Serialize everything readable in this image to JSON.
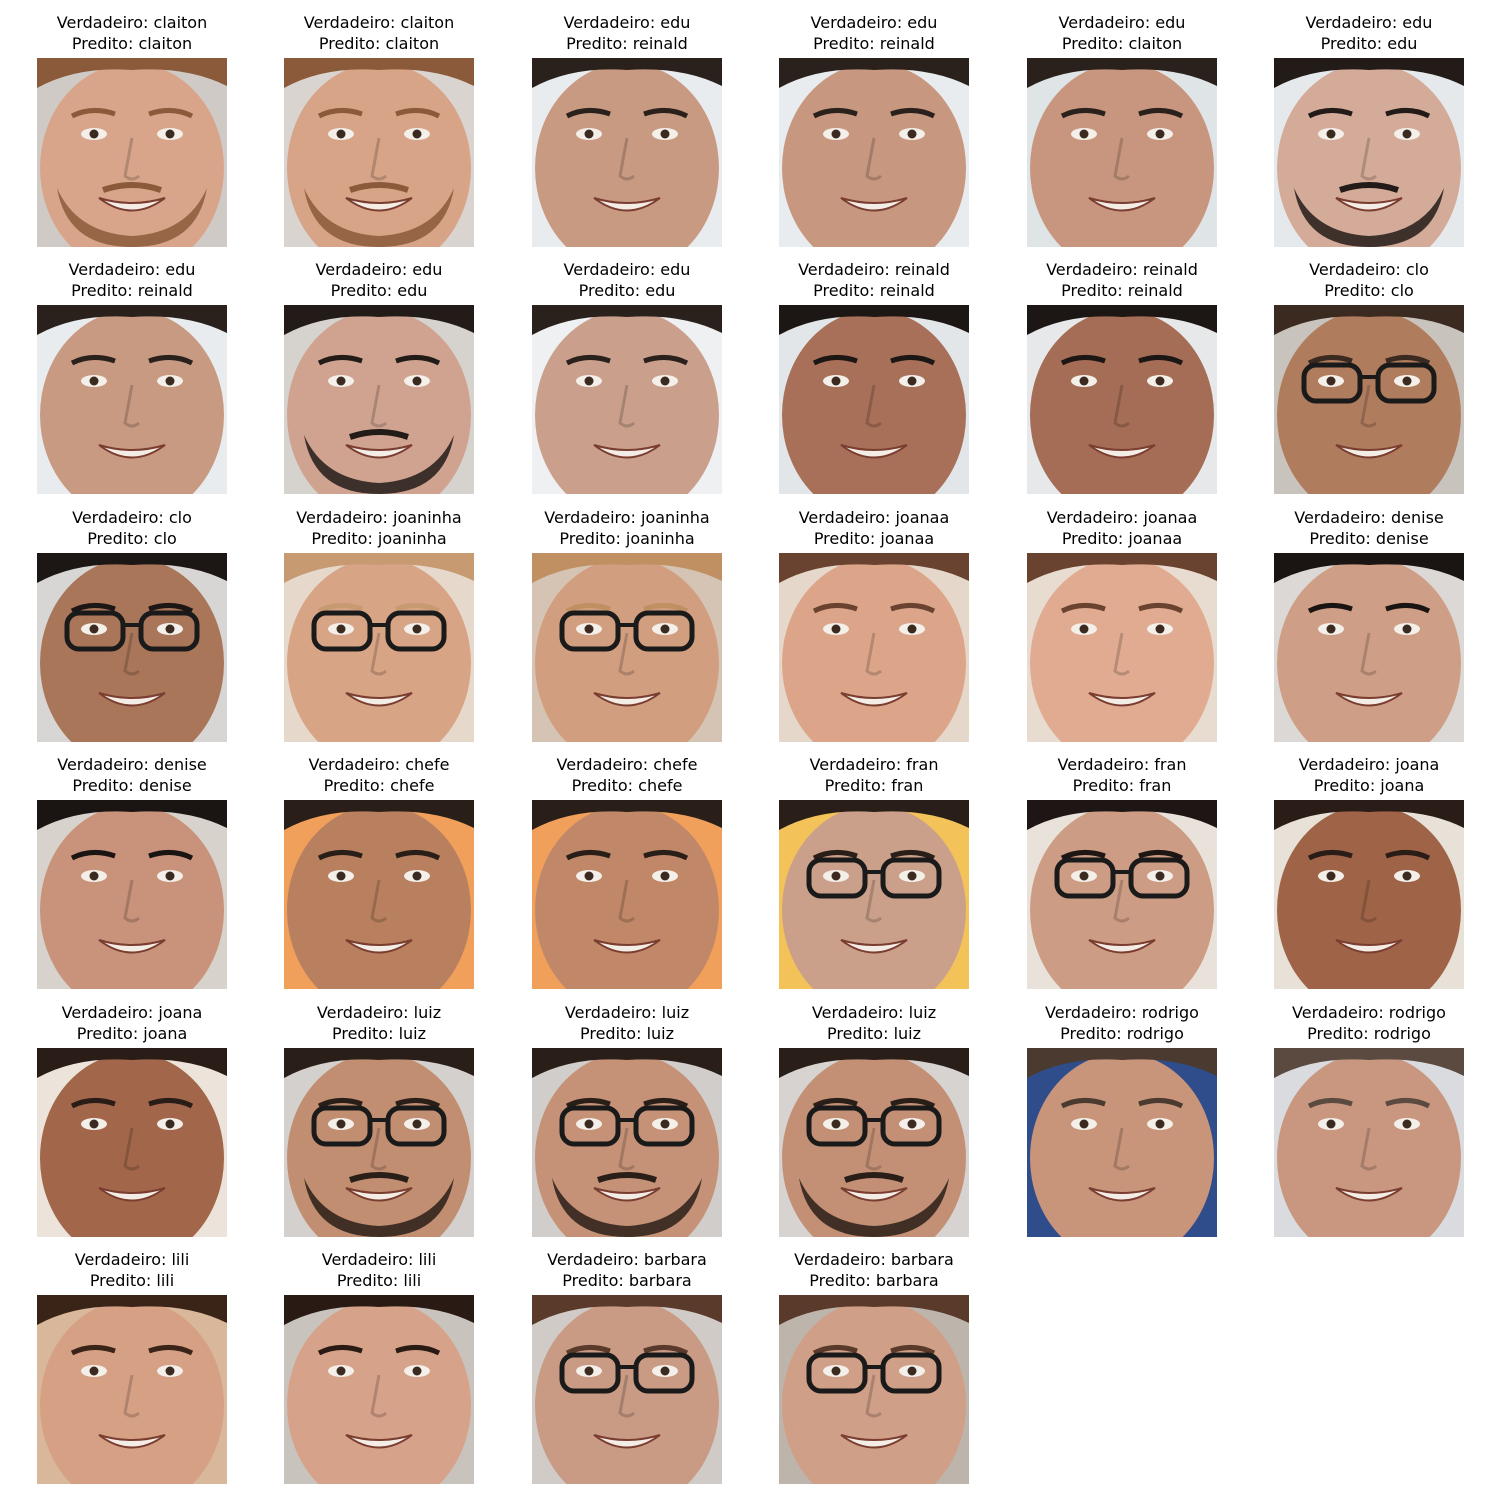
{
  "true_prefix": "Verdadeiro: ",
  "pred_prefix": "Predito: ",
  "items": [
    {
      "true": "claiton",
      "pred": "claiton",
      "skin": "#d9a58a",
      "hair": "#8a5a3a",
      "bg": "#cfcac6",
      "glasses": false,
      "beard": true
    },
    {
      "true": "claiton",
      "pred": "claiton",
      "skin": "#d7a488",
      "hair": "#8a5a3a",
      "bg": "#d9d4cf",
      "glasses": false,
      "beard": true
    },
    {
      "true": "edu",
      "pred": "reinald",
      "skin": "#c99a82",
      "hair": "#2a211c",
      "bg": "#e9ecef",
      "glasses": false,
      "beard": false
    },
    {
      "true": "edu",
      "pred": "reinald",
      "skin": "#c79780",
      "hair": "#2a211c",
      "bg": "#e9ecef",
      "glasses": false,
      "beard": false
    },
    {
      "true": "edu",
      "pred": "claiton",
      "skin": "#c8967e",
      "hair": "#2a211c",
      "bg": "#dfe4e7",
      "glasses": false,
      "beard": false
    },
    {
      "true": "edu",
      "pred": "edu",
      "skin": "#d3ab98",
      "hair": "#231b17",
      "bg": "#e6e9ec",
      "glasses": false,
      "beard": true
    },
    {
      "true": "edu",
      "pred": "reinald",
      "skin": "#c99a82",
      "hair": "#2a211c",
      "bg": "#e9ecef",
      "glasses": false,
      "beard": false
    },
    {
      "true": "edu",
      "pred": "edu",
      "skin": "#cfa390",
      "hair": "#231b17",
      "bg": "#d6d2ce",
      "glasses": false,
      "beard": true
    },
    {
      "true": "edu",
      "pred": "edu",
      "skin": "#caa08c",
      "hair": "#2a211c",
      "bg": "#eef0f2",
      "glasses": false,
      "beard": false
    },
    {
      "true": "reinald",
      "pred": "reinald",
      "skin": "#a87058",
      "hair": "#1c1614",
      "bg": "#e3e6e8",
      "glasses": false,
      "beard": false
    },
    {
      "true": "reinald",
      "pred": "reinald",
      "skin": "#a56d55",
      "hair": "#1c1614",
      "bg": "#e6e8ea",
      "glasses": false,
      "beard": false
    },
    {
      "true": "clo",
      "pred": "clo",
      "skin": "#b07c5e",
      "hair": "#3a2a20",
      "bg": "#c9c3bd",
      "glasses": true,
      "beard": false
    },
    {
      "true": "clo",
      "pred": "clo",
      "skin": "#a9765a",
      "hair": "#1c1614",
      "bg": "#d8d6d4",
      "glasses": true,
      "beard": false
    },
    {
      "true": "joaninha",
      "pred": "joaninha",
      "skin": "#d8a486",
      "hair": "#c79a72",
      "bg": "#e6d9cc",
      "glasses": true,
      "beard": false
    },
    {
      "true": "joaninha",
      "pred": "joaninha",
      "skin": "#d29e80",
      "hair": "#c08f62",
      "bg": "#d5c4b3",
      "glasses": true,
      "beard": false
    },
    {
      "true": "joanaa",
      "pred": "joanaa",
      "skin": "#dca58a",
      "hair": "#6a4330",
      "bg": "#e5d7ca",
      "glasses": false,
      "beard": false
    },
    {
      "true": "joanaa",
      "pred": "joanaa",
      "skin": "#e0ab90",
      "hair": "#6a4330",
      "bg": "#e8dbcf",
      "glasses": false,
      "beard": false
    },
    {
      "true": "denise",
      "pred": "denise",
      "skin": "#cf9e86",
      "hair": "#1a1412",
      "bg": "#dcd8d5",
      "glasses": false,
      "beard": false
    },
    {
      "true": "denise",
      "pred": "denise",
      "skin": "#c8937a",
      "hair": "#1a1412",
      "bg": "#d8d2cc",
      "glasses": false,
      "beard": false
    },
    {
      "true": "chefe",
      "pred": "chefe",
      "skin": "#b9805f",
      "hair": "#2a1e18",
      "bg": "#f0a05a",
      "glasses": false,
      "beard": false
    },
    {
      "true": "chefe",
      "pred": "chefe",
      "skin": "#c08868",
      "hair": "#2a1e18",
      "bg": "#f0a05a",
      "glasses": false,
      "beard": false
    },
    {
      "true": "fran",
      "pred": "fran",
      "skin": "#caa08a",
      "hair": "#2a1e18",
      "bg": "#f3c35a",
      "glasses": true,
      "beard": false
    },
    {
      "true": "fran",
      "pred": "fran",
      "skin": "#cd9c84",
      "hair": "#1e1614",
      "bg": "#e8e2da",
      "glasses": true,
      "beard": false
    },
    {
      "true": "joana",
      "pred": "joana",
      "skin": "#9f6448",
      "hair": "#2a1c16",
      "bg": "#e8e1d8",
      "glasses": false,
      "beard": false
    },
    {
      "true": "joana",
      "pred": "joana",
      "skin": "#a2674b",
      "hair": "#2a1c16",
      "bg": "#ece4da",
      "glasses": false,
      "beard": false
    },
    {
      "true": "luiz",
      "pred": "luiz",
      "skin": "#c28e72",
      "hair": "#2a1e18",
      "bg": "#d3d0cd",
      "glasses": true,
      "beard": true
    },
    {
      "true": "luiz",
      "pred": "luiz",
      "skin": "#c59277",
      "hair": "#2a1e18",
      "bg": "#d0cdca",
      "glasses": true,
      "beard": true
    },
    {
      "true": "luiz",
      "pred": "luiz",
      "skin": "#c39076",
      "hair": "#2a1e18",
      "bg": "#d6d3d0",
      "glasses": true,
      "beard": true
    },
    {
      "true": "rodrigo",
      "pred": "rodrigo",
      "skin": "#c8947a",
      "hair": "#4a3a30",
      "bg": "#2f4d8a",
      "glasses": false,
      "beard": false
    },
    {
      "true": "rodrigo",
      "pred": "rodrigo",
      "skin": "#c99780",
      "hair": "#5a4a40",
      "bg": "#d9dbde",
      "glasses": false,
      "beard": false
    },
    {
      "true": "lili",
      "pred": "lili",
      "skin": "#d6a085",
      "hair": "#3a2418",
      "bg": "#d9b79a",
      "glasses": false,
      "beard": false
    },
    {
      "true": "lili",
      "pred": "lili",
      "skin": "#d7a28a",
      "hair": "#2a1a14",
      "bg": "#c9c3be",
      "glasses": false,
      "beard": false
    },
    {
      "true": "barbara",
      "pred": "barbara",
      "skin": "#c99a84",
      "hair": "#5a3a2a",
      "bg": "#d0cbc7",
      "glasses": true,
      "beard": false
    },
    {
      "true": "barbara",
      "pred": "barbara",
      "skin": "#cf9f88",
      "hair": "#5a3a2a",
      "bg": "#bdb4ab",
      "glasses": true,
      "beard": false
    }
  ]
}
